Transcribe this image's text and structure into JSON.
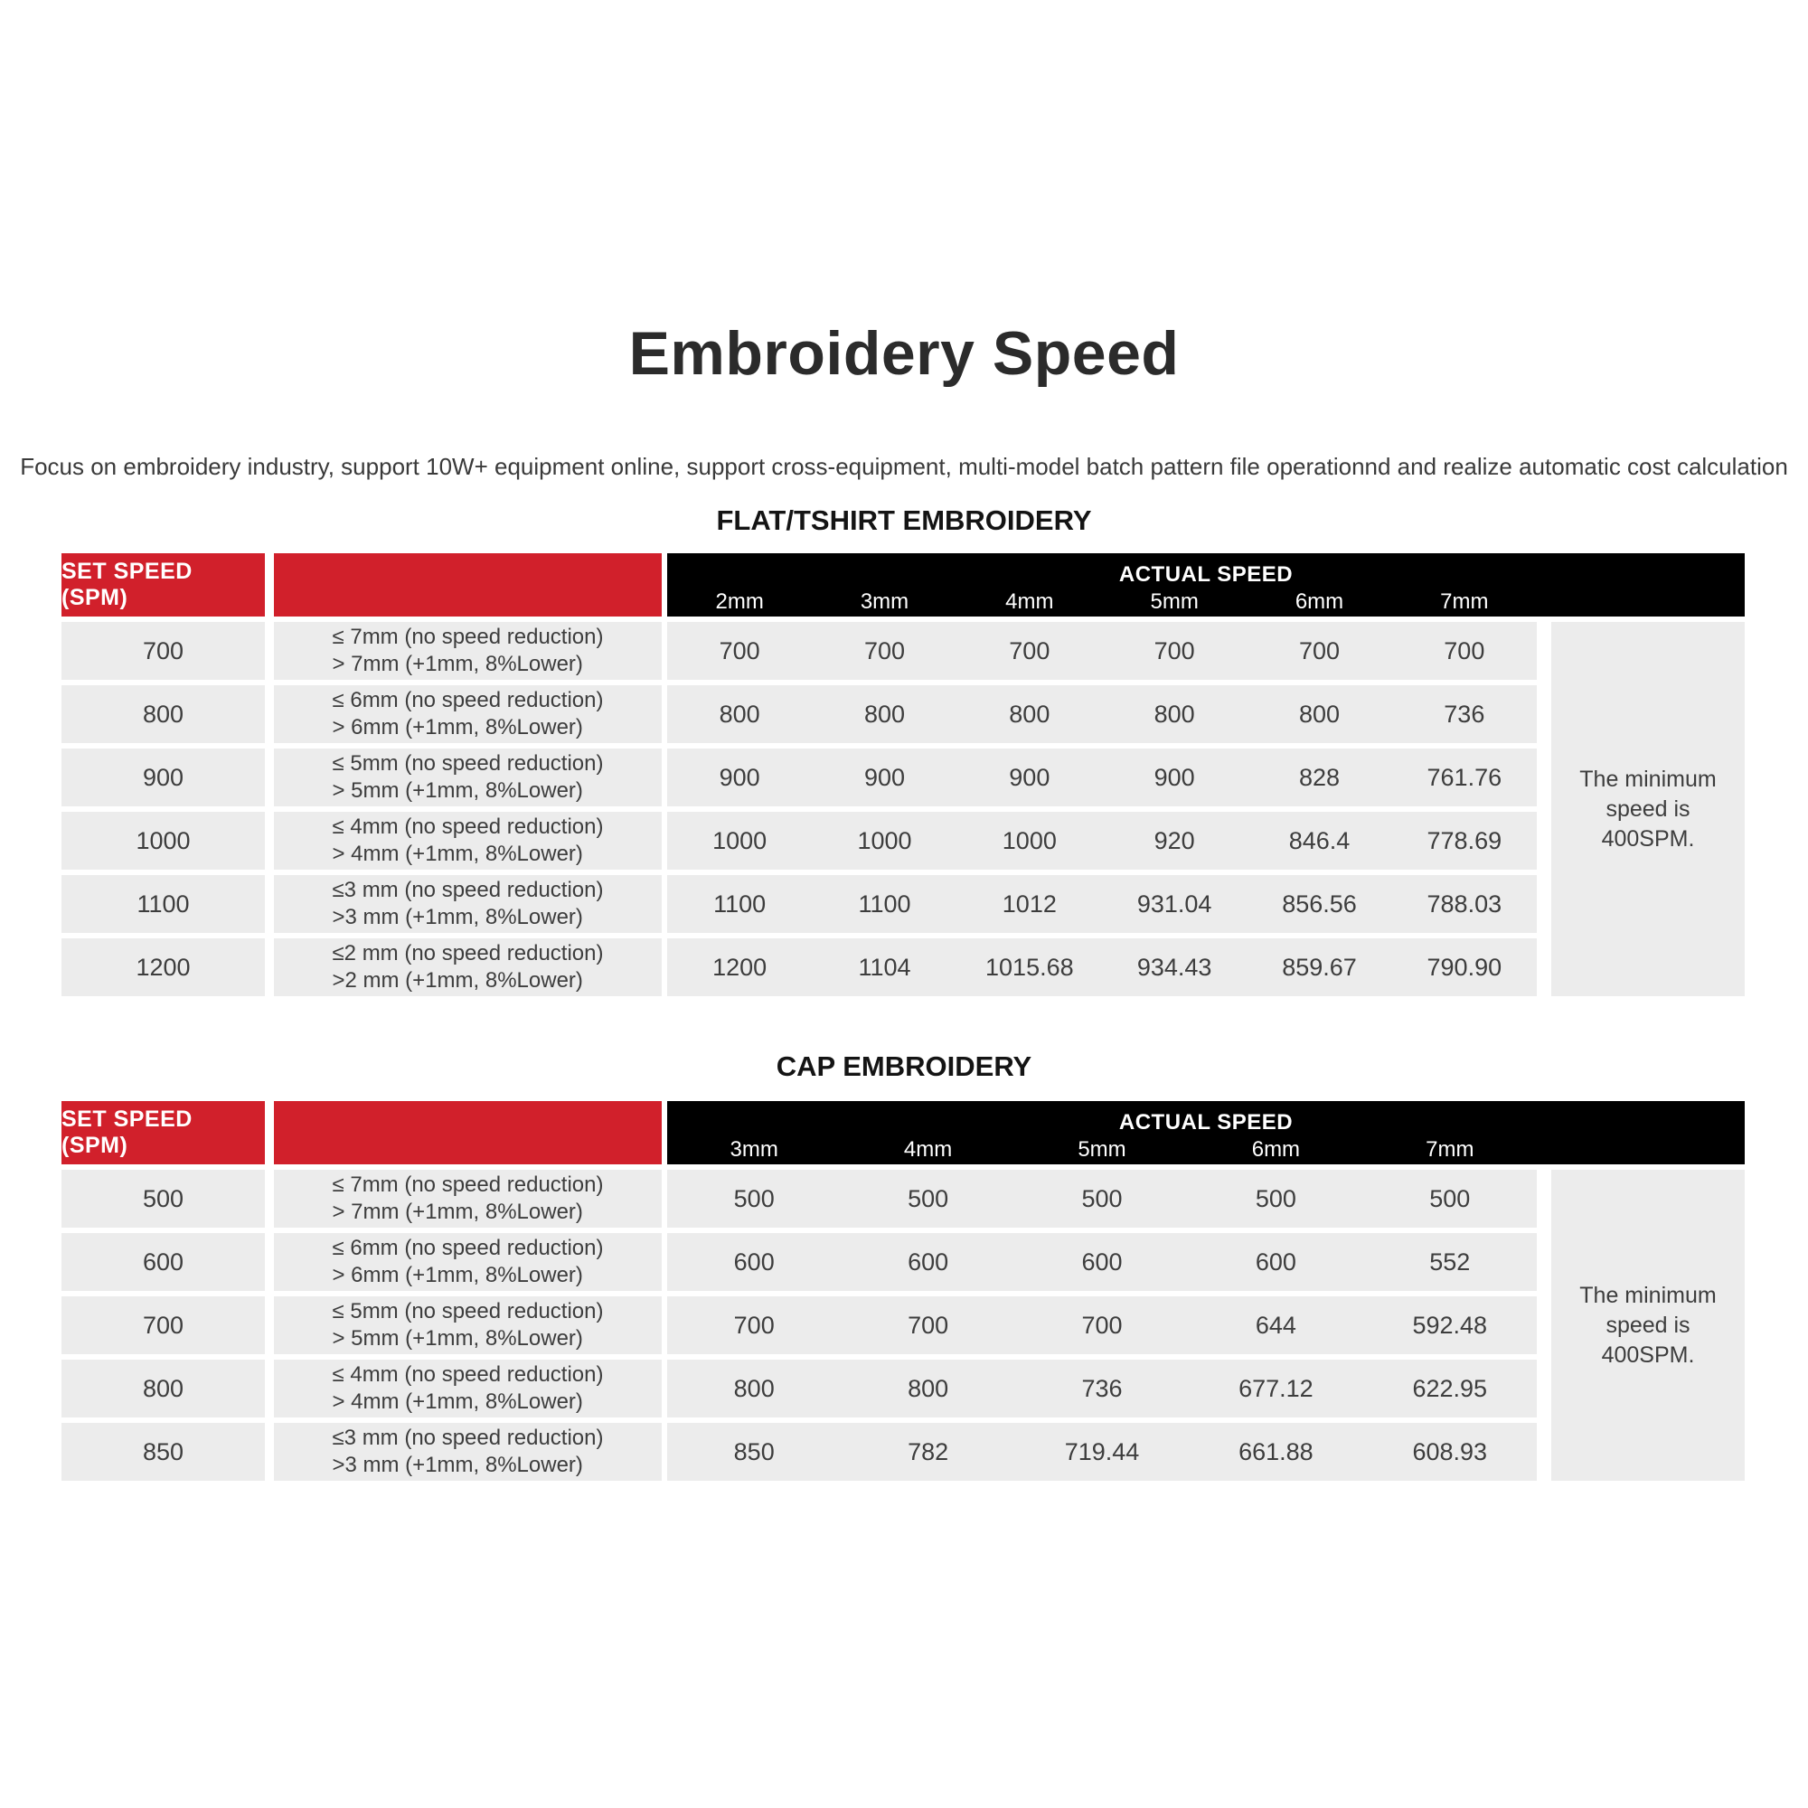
{
  "page": {
    "title": "Embroidery Speed",
    "subtitle": "Focus on embroidery industry, support 10W+ equipment online, support cross-equipment, multi-model batch pattern file operationnd and realize automatic cost calculation"
  },
  "colors": {
    "accent_red": "#d1202b",
    "header_black": "#000000",
    "row_gray": "#ececec",
    "text_gray": "#3d3d3d"
  },
  "flat_table": {
    "heading": "FLAT/TSHIRT EMBROIDERY",
    "set_speed_header": "SET SPEED (SPM)",
    "actual_speed_header": "ACTUAL SPEED",
    "columns": [
      "2mm",
      "3mm",
      "4mm",
      "5mm",
      "6mm",
      "7mm"
    ],
    "note": "The minimum speed is 400SPM.",
    "rows": [
      {
        "set_speed": "700",
        "rule_line1": "≤ 7mm (no speed reduction)",
        "rule_line2": "> 7mm (+1mm, 8%Lower)",
        "speeds": [
          "700",
          "700",
          "700",
          "700",
          "700",
          "700"
        ]
      },
      {
        "set_speed": "800",
        "rule_line1": "≤ 6mm (no speed reduction)",
        "rule_line2": "> 6mm (+1mm, 8%Lower)",
        "speeds": [
          "800",
          "800",
          "800",
          "800",
          "800",
          "736"
        ]
      },
      {
        "set_speed": "900",
        "rule_line1": "≤ 5mm (no speed reduction)",
        "rule_line2": "> 5mm (+1mm, 8%Lower)",
        "speeds": [
          "900",
          "900",
          "900",
          "900",
          "828",
          "761.76"
        ]
      },
      {
        "set_speed": "1000",
        "rule_line1": "≤ 4mm (no speed reduction)",
        "rule_line2": "> 4mm (+1mm, 8%Lower)",
        "speeds": [
          "1000",
          "1000",
          "1000",
          "920",
          "846.4",
          "778.69"
        ]
      },
      {
        "set_speed": "1100",
        "rule_line1": "≤3 mm (no speed reduction)",
        "rule_line2": ">3 mm (+1mm, 8%Lower)",
        "speeds": [
          "1100",
          "1100",
          "1012",
          "931.04",
          "856.56",
          "788.03"
        ]
      },
      {
        "set_speed": "1200",
        "rule_line1": "≤2 mm (no speed reduction)",
        "rule_line2": ">2 mm (+1mm, 8%Lower)",
        "speeds": [
          "1200",
          "1104",
          "1015.68",
          "934.43",
          "859.67",
          "790.90"
        ]
      }
    ]
  },
  "cap_table": {
    "heading": "CAP EMBROIDERY",
    "set_speed_header": "SET SPEED (SPM)",
    "actual_speed_header": "ACTUAL SPEED",
    "columns": [
      "3mm",
      "4mm",
      "5mm",
      "6mm",
      "7mm"
    ],
    "note": "The minimum speed is 400SPM.",
    "rows": [
      {
        "set_speed": "500",
        "rule_line1": "≤ 7mm (no speed reduction)",
        "rule_line2": "> 7mm (+1mm, 8%Lower)",
        "speeds": [
          "500",
          "500",
          "500",
          "500",
          "500"
        ]
      },
      {
        "set_speed": "600",
        "rule_line1": "≤ 6mm (no speed reduction)",
        "rule_line2": "> 6mm (+1mm, 8%Lower)",
        "speeds": [
          "600",
          "600",
          "600",
          "600",
          "552"
        ]
      },
      {
        "set_speed": "700",
        "rule_line1": "≤ 5mm (no speed reduction)",
        "rule_line2": "> 5mm (+1mm, 8%Lower)",
        "speeds": [
          "700",
          "700",
          "700",
          "644",
          "592.48"
        ]
      },
      {
        "set_speed": "800",
        "rule_line1": "≤ 4mm (no speed reduction)",
        "rule_line2": "> 4mm (+1mm, 8%Lower)",
        "speeds": [
          "800",
          "800",
          "736",
          "677.12",
          "622.95"
        ]
      },
      {
        "set_speed": "850",
        "rule_line1": "≤3 mm (no speed reduction)",
        "rule_line2": ">3 mm (+1mm, 8%Lower)",
        "speeds": [
          "850",
          "782",
          "719.44",
          "661.88",
          "608.93"
        ]
      }
    ]
  }
}
